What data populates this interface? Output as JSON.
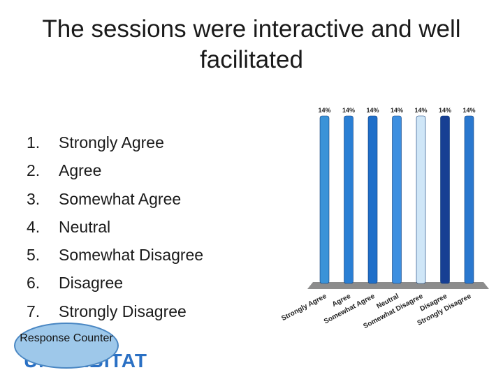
{
  "slide": {
    "title_line1": "The sessions were interactive and well",
    "title_line2": "facilitated"
  },
  "options": [
    {
      "num": "1.",
      "label": "Strongly Agree"
    },
    {
      "num": "2.",
      "label": "Agree"
    },
    {
      "num": "3.",
      "label": "Somewhat Agree"
    },
    {
      "num": "4.",
      "label": "Neutral"
    },
    {
      "num": "5.",
      "label": "Somewhat Disagree"
    },
    {
      "num": "6.",
      "label": "Disagree"
    },
    {
      "num": "7.",
      "label": "Strongly Disagree"
    }
  ],
  "response_counter": {
    "label": "Response Counter"
  },
  "logo": {
    "text": "UN HABITAT"
  },
  "chart_data": {
    "type": "bar",
    "categories": [
      "Strongly Agree",
      "Agree",
      "Somewhat Agree",
      "Neutral",
      "Somewhat Disagree",
      "Disagree",
      "Strongly Disagree"
    ],
    "values": [
      14,
      14,
      14,
      14,
      14,
      14,
      14
    ],
    "value_labels": [
      "14%",
      "14%",
      "14%",
      "14%",
      "14%",
      "14%",
      "14%"
    ],
    "unit": "%",
    "ylim": [
      0,
      14
    ],
    "grid": false,
    "bar_colors": [
      "#3a93d8",
      "#2a7fd4",
      "#1f6fc9",
      "#3d8fe0",
      "#cfe6f7",
      "#173f93",
      "#2a78cf"
    ]
  }
}
